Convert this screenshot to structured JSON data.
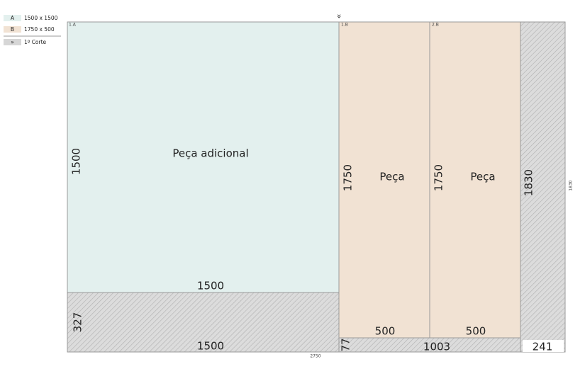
{
  "legend": [
    {
      "key": "A",
      "label": "1500 x 1500"
    },
    {
      "key": "B",
      "label": "1750 x 500"
    },
    {
      "key": "»",
      "label": "1º Corte"
    }
  ],
  "cut_marker": "»",
  "sheet": {
    "width_label": "2750",
    "height_label": "1830"
  },
  "pieces": [
    {
      "id": "1.A",
      "name": "Peça adicional",
      "height": "1500",
      "width": "1500"
    },
    {
      "id": "1.B",
      "name": "Peça",
      "height": "1750",
      "width": "500"
    },
    {
      "id": "2.B",
      "name": "Peça",
      "height": "1750",
      "width": "500"
    }
  ],
  "waste": [
    {
      "height": "327",
      "width": "1500"
    },
    {
      "height": "77",
      "width": "1003"
    },
    {
      "height": "1830",
      "width": "241"
    }
  ]
}
